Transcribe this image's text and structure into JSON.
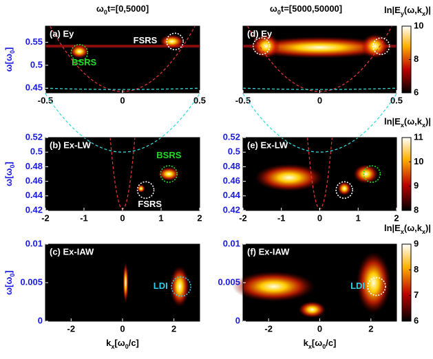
{
  "chart_data": [
    {
      "type": "heatmap",
      "title": [
        "ω",
        "0",
        "t=[0,5000]"
      ],
      "panel_label": "(a) Ey",
      "annotations": [
        {
          "text": "FSRS",
          "color": "#ffffff"
        },
        {
          "text": "BSRS",
          "color": "#22dd22"
        }
      ],
      "xlim": [
        -0.5,
        0.5
      ],
      "xticks": [
        -0.5,
        0,
        0.5
      ],
      "ylim": [
        0.44,
        0.585
      ],
      "yticks": [
        0.45,
        0.5,
        0.55
      ],
      "ylabel": [
        "ω[ω",
        "0",
        "]"
      ]
    },
    {
      "type": "heatmap",
      "panel_label": "(b) Ex-LW",
      "annotations": [
        {
          "text": "BSRS",
          "color": "#22dd22"
        },
        {
          "text": "FSRS",
          "color": "#ffffff"
        }
      ],
      "xlim": [
        -2,
        2
      ],
      "xticks": [
        -2,
        -1,
        0,
        1,
        2
      ],
      "ylim": [
        0.42,
        0.52
      ],
      "yticks": [
        0.42,
        0.44,
        0.46,
        0.48,
        0.5,
        0.52
      ],
      "ylabel": [
        "ω[ω",
        "0",
        "]"
      ]
    },
    {
      "type": "heatmap",
      "panel_label": "(c) Ex-IAW",
      "annotations": [
        {
          "text": "LDI",
          "color": "#33ccee"
        }
      ],
      "xlim": [
        -3,
        3
      ],
      "xticks": [
        -2,
        0,
        2
      ],
      "ylim": [
        0,
        0.01
      ],
      "yticks": [
        0,
        0.005,
        0.01
      ],
      "ylabel": [
        "ω[ω",
        "0",
        "]"
      ],
      "xlabel": [
        "k",
        "x",
        "[ω",
        "0",
        "/c]"
      ]
    },
    {
      "type": "heatmap",
      "title": [
        "ω",
        "0",
        "t=[5000,50000]"
      ],
      "panel_label": "(d) Ey",
      "annotations": [],
      "xlim": [
        -0.5,
        0.5
      ],
      "xticks": [
        -0.5,
        0,
        0.5
      ],
      "ylim": [
        0.44,
        0.585
      ],
      "colorbar": {
        "label": [
          "ln|E",
          "y",
          "(ω,k",
          "x",
          ")|"
        ],
        "clim": [
          6,
          10
        ],
        "ticks": [
          6,
          8,
          10
        ]
      }
    },
    {
      "type": "heatmap",
      "panel_label": "(e) Ex-LW",
      "annotations": [],
      "xlim": [
        -2,
        2
      ],
      "xticks": [
        -2,
        -1,
        0,
        1,
        2
      ],
      "ylim": [
        0.42,
        0.52
      ],
      "yticks": [
        0.42,
        0.44,
        0.46,
        0.48,
        0.5,
        0.52
      ],
      "colorbar": {
        "label": [
          "ln|E",
          "x",
          "(ω,k",
          "x",
          ")|"
        ],
        "clim": [
          8,
          11
        ],
        "ticks": [
          8,
          9,
          10,
          11
        ]
      }
    },
    {
      "type": "heatmap",
      "panel_label": "(f) Ex-IAW",
      "annotations": [
        {
          "text": "LDI",
          "color": "#33ccee"
        }
      ],
      "xlim": [
        -3,
        3
      ],
      "xticks": [
        -2,
        0,
        2
      ],
      "ylim": [
        0,
        0.01
      ],
      "yticks": [
        0,
        0.005,
        0.01
      ],
      "xlabel": [
        "k",
        "x",
        "[ω",
        "0",
        "/c]"
      ],
      "colorbar": {
        "label": [
          "ln|E",
          "x",
          "(ω,k",
          "x",
          ")|"
        ],
        "clim": [
          6,
          9
        ],
        "ticks": [
          6,
          7,
          8,
          9
        ]
      }
    }
  ]
}
